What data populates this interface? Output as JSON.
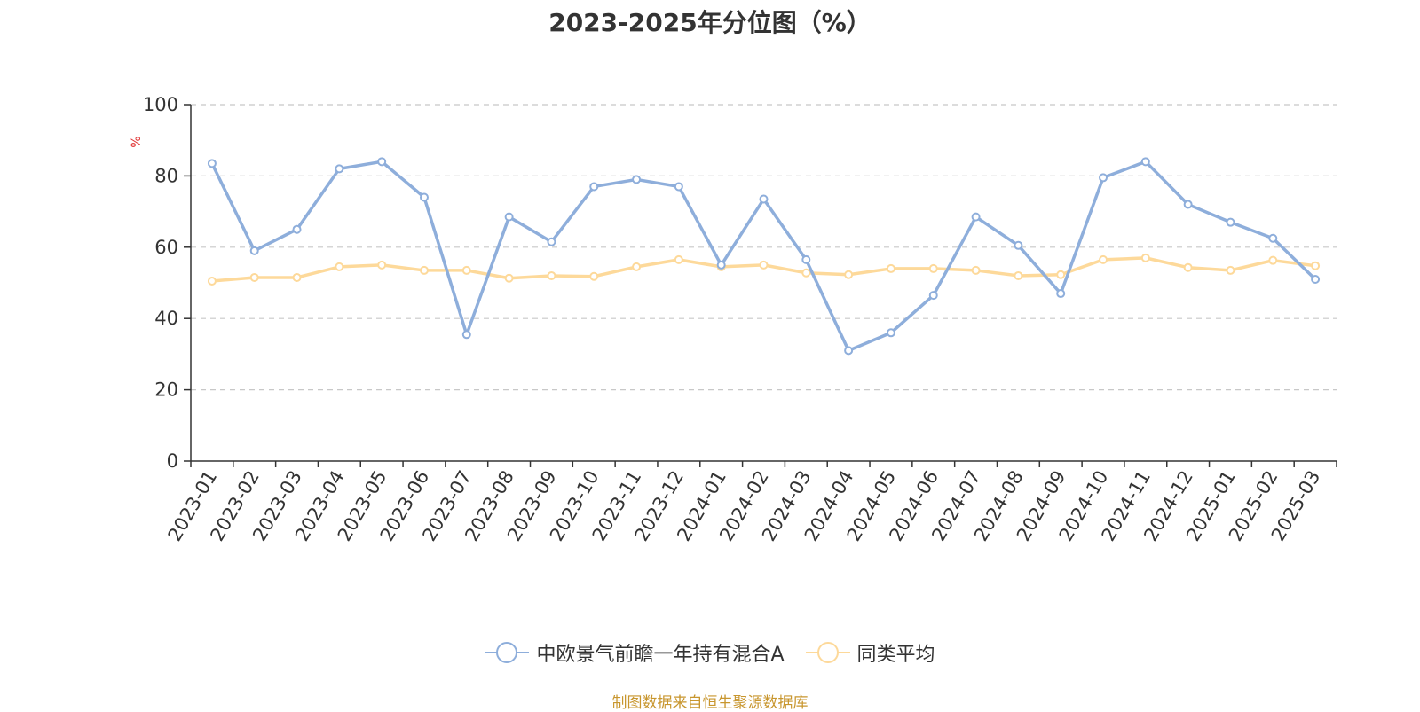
{
  "chart_data": {
    "type": "line",
    "title": "2023-2025年分位图（%）",
    "ylabel": "%",
    "xlabel": "",
    "ylim": [
      0,
      100
    ],
    "yticks": [
      "0",
      "20",
      "40",
      "60",
      "80",
      "100"
    ],
    "grid": "horizontal dashed",
    "legend_position": "bottom",
    "categories": [
      "2023-01",
      "2023-02",
      "2023-03",
      "2023-04",
      "2023-05",
      "2023-06",
      "2023-07",
      "2023-08",
      "2023-09",
      "2023-10",
      "2023-11",
      "2023-12",
      "2024-01",
      "2024-02",
      "2024-03",
      "2024-04",
      "2024-05",
      "2024-06",
      "2024-07",
      "2024-08",
      "2024-09",
      "2024-10",
      "2024-11",
      "2024-12",
      "2025-01",
      "2025-02",
      "2025-03"
    ],
    "series": [
      {
        "name": "中欧景气前瞻一年持有混合A",
        "color": "#8eaedb",
        "values": [
          83.5,
          59,
          65,
          82,
          84,
          74,
          35.5,
          68.5,
          61.5,
          77,
          79,
          77,
          55,
          73.5,
          56.5,
          31,
          36,
          46.5,
          68.5,
          60.5,
          47,
          79.5,
          84,
          72,
          67,
          62.5,
          51
        ]
      },
      {
        "name": "同类平均",
        "color": "#fdd99a",
        "values": [
          50.5,
          51.5,
          51.5,
          54.5,
          55,
          53.5,
          53.5,
          51.3,
          52,
          51.8,
          54.5,
          56.5,
          54.5,
          55,
          52.8,
          52.3,
          54,
          54,
          53.5,
          52,
          52.3,
          56.5,
          57,
          54.3,
          53.5,
          56.3,
          54.8
        ]
      }
    ]
  },
  "source_text": "制图数据来自恒生聚源数据库"
}
